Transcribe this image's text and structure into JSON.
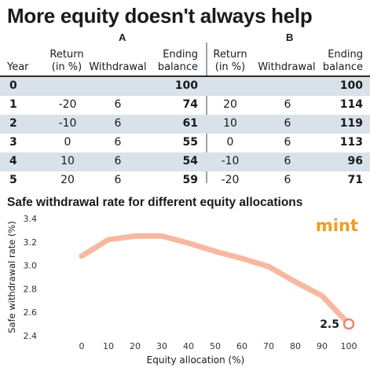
{
  "headline": "More equity doesn't always help",
  "table": {
    "group_a": "A",
    "group_b": "B",
    "headers": {
      "year": "Year",
      "return_line1": "Return",
      "return_line2": "(in %)",
      "withdrawal": "Withdrawal",
      "ending_line1": "Ending",
      "ending_line2": "balance"
    },
    "rows": [
      {
        "year": "0",
        "a_return": "",
        "a_withdrawal": "",
        "a_balance": "100",
        "b_return": "",
        "b_withdrawal": "",
        "b_balance": "100",
        "shaded": true
      },
      {
        "year": "1",
        "a_return": "-20",
        "a_withdrawal": "6",
        "a_balance": "74",
        "b_return": "20",
        "b_withdrawal": "6",
        "b_balance": "114",
        "shaded": false
      },
      {
        "year": "2",
        "a_return": "-10",
        "a_withdrawal": "6",
        "a_balance": "61",
        "b_return": "10",
        "b_withdrawal": "6",
        "b_balance": "119",
        "shaded": true
      },
      {
        "year": "3",
        "a_return": "0",
        "a_withdrawal": "6",
        "a_balance": "55",
        "b_return": "0",
        "b_withdrawal": "6",
        "b_balance": "113",
        "shaded": false
      },
      {
        "year": "4",
        "a_return": "10",
        "a_withdrawal": "6",
        "a_balance": "54",
        "b_return": "-10",
        "b_withdrawal": "6",
        "b_balance": "96",
        "shaded": true
      },
      {
        "year": "5",
        "a_return": "20",
        "a_withdrawal": "6",
        "a_balance": "59",
        "b_return": "-20",
        "b_withdrawal": "6",
        "b_balance": "71",
        "shaded": false
      }
    ]
  },
  "chart_data": {
    "type": "line",
    "title": "Safe withdrawal rate for different equity allocations",
    "xlabel": "Equity allocation (%)",
    "ylabel": "Safe withdrawal rate (%)",
    "x": [
      0,
      10,
      20,
      30,
      40,
      50,
      60,
      70,
      80,
      90,
      100
    ],
    "y": [
      3.08,
      3.22,
      3.25,
      3.25,
      3.19,
      3.12,
      3.06,
      2.99,
      2.86,
      2.74,
      2.5
    ],
    "xticks": [
      "0",
      "10",
      "20",
      "30",
      "40",
      "50",
      "60",
      "70",
      "80",
      "90",
      "100"
    ],
    "yticks": [
      "2.4",
      "2.6",
      "2.8",
      "3.0",
      "3.2",
      "3.4"
    ],
    "xlim": [
      0,
      100
    ],
    "ylim": [
      2.4,
      3.4
    ],
    "end_label": "2.5",
    "line_color": "#f7b8a2",
    "marker_color": "#f0856a",
    "grid": false
  },
  "brand": {
    "logo_text": "mint",
    "logo_color": "#f39a1f"
  },
  "colors": {
    "row_shade": "#d9e2ea",
    "rule": "#2a2a2a"
  }
}
